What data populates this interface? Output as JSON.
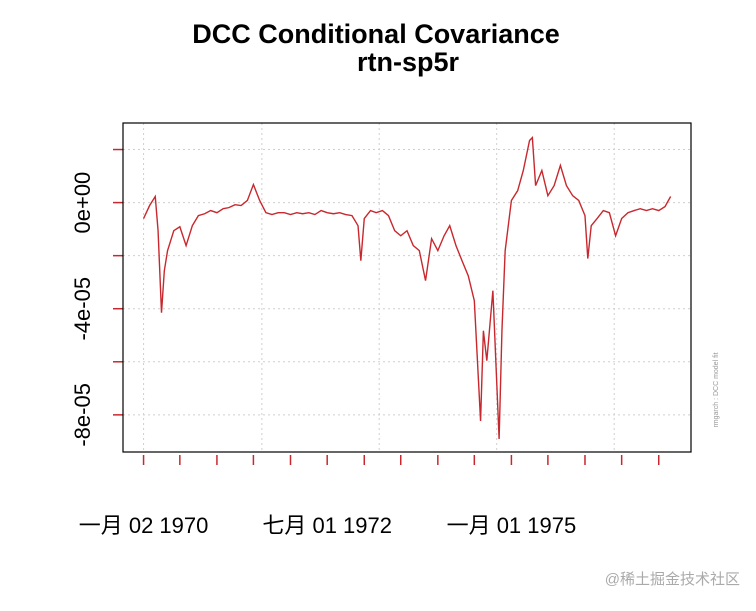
{
  "chart_data": {
    "type": "line",
    "title": "DCC Conditional Covariance",
    "subtitle": "rtn-sp5r",
    "side_note": "rmgarch : DCC model fit",
    "watermark": "@稀土掘金技术社区",
    "color": "#c8282d",
    "grid": true,
    "xlim": [
      "1969-09-22",
      "1977-06-10"
    ],
    "ylim": [
      3e-05,
      -9.4e-05
    ],
    "yticks": [
      {
        "value": 0,
        "label": "0e+00"
      },
      {
        "value": -4e-05,
        "label": "-4e-05"
      },
      {
        "value": -8e-05,
        "label": "-8e-05"
      }
    ],
    "yminor_ticks": [
      2e-05,
      0,
      -2e-05,
      -4e-05,
      -6e-05,
      -8e-05
    ],
    "xticks": [
      {
        "value": "1970-01-02",
        "label": "一月 02 1970"
      },
      {
        "value": "1972-07-01",
        "label": "七月 01 1972"
      },
      {
        "value": "1975-01-01",
        "label": "一月 01 1975"
      }
    ],
    "xminor_ticks": [
      "1970-01-02",
      "1970-07-01",
      "1971-01-01",
      "1971-07-01",
      "1972-01-01",
      "1972-07-01",
      "1973-01-01",
      "1973-07-01",
      "1974-01-01",
      "1974-07-01",
      "1975-01-01",
      "1975-07-01",
      "1976-01-01",
      "1976-07-01",
      "1977-01-01"
    ],
    "xgrid": [
      "1970-01-02",
      "1971-08-12",
      "1973-03-16",
      "1974-10-20",
      "1976-05-25"
    ],
    "x": [
      "1970-01-02",
      "1970-02-01",
      "1970-03-01",
      "1970-03-15",
      "1970-04-01",
      "1970-04-15",
      "1970-05-01",
      "1970-06-01",
      "1970-07-01",
      "1970-08-01",
      "1970-09-01",
      "1970-10-01",
      "1970-11-01",
      "1970-12-01",
      "1971-01-01",
      "1971-02-01",
      "1971-03-01",
      "1971-04-01",
      "1971-05-01",
      "1971-06-01",
      "1971-07-01",
      "1971-08-01",
      "1971-09-01",
      "1971-10-01",
      "1971-11-01",
      "1971-12-01",
      "1972-01-01",
      "1972-02-01",
      "1972-03-01",
      "1972-04-01",
      "1972-05-01",
      "1972-06-01",
      "1972-07-01",
      "1972-08-01",
      "1972-09-01",
      "1972-10-01",
      "1972-11-01",
      "1972-12-01",
      "1972-12-15",
      "1973-01-01",
      "1973-02-01",
      "1973-03-01",
      "1973-04-01",
      "1973-05-01",
      "1973-06-01",
      "1973-07-01",
      "1973-08-01",
      "1973-09-01",
      "1973-10-01",
      "1973-11-01",
      "1973-12-01",
      "1974-01-01",
      "1974-02-01",
      "1974-03-01",
      "1974-04-01",
      "1974-05-01",
      "1974-06-01",
      "1974-07-01",
      "1974-08-01",
      "1974-08-15",
      "1974-09-01",
      "1974-10-01",
      "1974-11-01",
      "1974-11-15",
      "1974-12-01",
      "1975-01-01",
      "1975-02-01",
      "1975-03-01",
      "1975-04-01",
      "1975-04-15",
      "1975-05-01",
      "1975-06-01",
      "1975-07-01",
      "1975-08-01",
      "1975-09-01",
      "1975-10-01",
      "1975-11-01",
      "1975-12-01",
      "1976-01-01",
      "1976-01-15",
      "1976-02-01",
      "1976-03-01",
      "1976-04-01",
      "1976-05-01",
      "1976-06-01",
      "1976-07-01",
      "1976-08-01",
      "1976-09-01",
      "1976-10-01",
      "1976-11-01",
      "1976-12-01",
      "1977-01-01",
      "1977-02-01",
      "1977-03-01"
    ],
    "values": [
      -6e-06,
      -1.1e-06,
      2.3e-06,
      -1.06e-05,
      -4.15e-05,
      -2.57e-05,
      -1.81e-05,
      -1.06e-05,
      -9.1e-06,
      -1.62e-05,
      -8.7e-06,
      -4.9e-06,
      -4.2e-06,
      -3e-06,
      -3.8e-06,
      -2.3e-06,
      -1.9e-06,
      -8e-07,
      -1.1e-06,
      8e-07,
      6.8e-06,
      8e-07,
      -3.8e-06,
      -4.5e-06,
      -3.8e-06,
      -3.8e-06,
      -4.5e-06,
      -3.8e-06,
      -4.2e-06,
      -3.8e-06,
      -4.5e-06,
      -3e-06,
      -3.8e-06,
      -4.2e-06,
      -3.8e-06,
      -4.5e-06,
      -4.9e-06,
      -8.7e-06,
      -2.19e-05,
      -6e-06,
      -3e-06,
      -3.8e-06,
      -3e-06,
      -4.9e-06,
      -1.06e-05,
      -1.25e-05,
      -1.06e-05,
      -1.62e-05,
      -1.81e-05,
      -2.94e-05,
      -1.36e-05,
      -1.81e-05,
      -1.25e-05,
      -8.7e-06,
      -1.62e-05,
      -2.19e-05,
      -2.76e-05,
      -3.7e-05,
      -8.23e-05,
      -4.83e-05,
      -5.96e-05,
      -3.32e-05,
      -8.91e-05,
      -4.83e-05,
      -1.81e-05,
      8e-07,
      4.5e-06,
      1.21e-05,
      2.34e-05,
      2.45e-05,
      6.4e-06,
      1.21e-05,
      2.6e-06,
      6.4e-06,
      1.4e-05,
      6.4e-06,
      2.6e-06,
      8e-07,
      -4.9e-06,
      -2.11e-05,
      -8.7e-06,
      -6e-06,
      -3e-06,
      -3.8e-06,
      -1.25e-05,
      -6e-06,
      -3.8e-06,
      -3e-06,
      -2.3e-06,
      -3e-06,
      -2.3e-06,
      -3e-06,
      -1.5e-06,
      2.3e-06
    ]
  }
}
